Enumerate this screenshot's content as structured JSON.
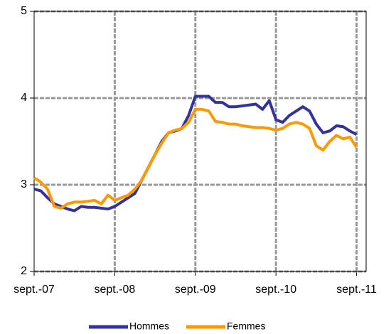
{
  "chart_data": {
    "type": "line",
    "categories": [
      "sept.-07",
      null,
      null,
      null,
      null,
      null,
      null,
      null,
      null,
      null,
      null,
      null,
      "sept.-08",
      null,
      null,
      null,
      null,
      null,
      null,
      null,
      null,
      null,
      null,
      null,
      "sept.-09",
      null,
      null,
      null,
      null,
      null,
      null,
      null,
      null,
      null,
      null,
      null,
      "sept.-10",
      null,
      null,
      null,
      null,
      null,
      null,
      null,
      null,
      null,
      null,
      null,
      "sept.-11"
    ],
    "series": [
      {
        "name": "Hommes",
        "color": "#333399",
        "values": [
          2.95,
          2.93,
          2.85,
          2.78,
          2.75,
          2.72,
          2.7,
          2.75,
          2.74,
          2.74,
          2.73,
          2.72,
          2.75,
          2.8,
          2.85,
          2.9,
          3.05,
          3.2,
          3.35,
          3.5,
          3.6,
          3.62,
          3.65,
          3.8,
          4.02,
          4.02,
          4.02,
          3.95,
          3.95,
          3.9,
          3.9,
          3.91,
          3.92,
          3.93,
          3.87,
          3.97,
          3.75,
          3.72,
          3.8,
          3.85,
          3.9,
          3.85,
          3.7,
          3.6,
          3.62,
          3.68,
          3.67,
          3.62,
          3.58
        ]
      },
      {
        "name": "Femmes",
        "color": "#ff9900",
        "values": [
          3.08,
          3.03,
          2.95,
          2.75,
          2.73,
          2.78,
          2.8,
          2.8,
          2.81,
          2.82,
          2.78,
          2.88,
          2.82,
          2.85,
          2.88,
          2.95,
          3.05,
          3.2,
          3.35,
          3.48,
          3.6,
          3.63,
          3.65,
          3.72,
          3.87,
          3.87,
          3.85,
          3.73,
          3.72,
          3.7,
          3.7,
          3.68,
          3.67,
          3.66,
          3.66,
          3.65,
          3.63,
          3.65,
          3.7,
          3.72,
          3.7,
          3.65,
          3.45,
          3.4,
          3.5,
          3.57,
          3.53,
          3.55,
          3.43
        ]
      }
    ],
    "ylim": [
      2,
      5
    ],
    "yticks": [
      2,
      3,
      4,
      5
    ],
    "grid": true,
    "legend": "bottom"
  }
}
